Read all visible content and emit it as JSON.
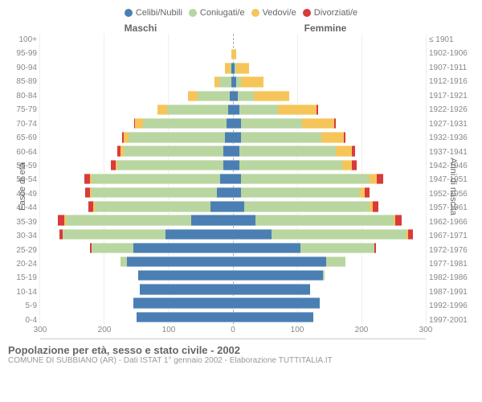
{
  "legend": [
    {
      "label": "Celibi/Nubili",
      "color": "#4b7fb3"
    },
    {
      "label": "Coniugati/e",
      "color": "#b9d6a0"
    },
    {
      "label": "Vedovi/e",
      "color": "#f6c55a"
    },
    {
      "label": "Divorziati/e",
      "color": "#d93a3a"
    }
  ],
  "headers": {
    "male": "Maschi",
    "female": "Femmine"
  },
  "ylabel_left": "Fasce di età",
  "ylabel_right": "Anni di nascita",
  "xmax": 300,
  "xticks": [
    0,
    100,
    200,
    300
  ],
  "title": "Popolazione per età, sesso e stato civile - 2002",
  "subtitle": "COMUNE DI SUBBIANO (AR) - Dati ISTAT 1° gennaio 2002 - Elaborazione TUTTITALIA.IT",
  "rows": [
    {
      "age": "100+",
      "birth": "≤ 1901",
      "m": {
        "cel": 0,
        "con": 0,
        "ved": 0,
        "div": 0
      },
      "f": {
        "cel": 0,
        "con": 0,
        "ved": 0,
        "div": 0
      }
    },
    {
      "age": "95-99",
      "birth": "1902-1906",
      "m": {
        "cel": 0,
        "con": 0,
        "ved": 2,
        "div": 0
      },
      "f": {
        "cel": 0,
        "con": 0,
        "ved": 5,
        "div": 0
      }
    },
    {
      "age": "90-94",
      "birth": "1907-1911",
      "m": {
        "cel": 2,
        "con": 2,
        "ved": 8,
        "div": 0
      },
      "f": {
        "cel": 3,
        "con": 2,
        "ved": 20,
        "div": 0
      }
    },
    {
      "age": "85-89",
      "birth": "1912-1916",
      "m": {
        "cel": 3,
        "con": 18,
        "ved": 8,
        "div": 0
      },
      "f": {
        "cel": 5,
        "con": 8,
        "ved": 35,
        "div": 0
      }
    },
    {
      "age": "80-84",
      "birth": "1917-1921",
      "m": {
        "cel": 5,
        "con": 50,
        "ved": 15,
        "div": 0
      },
      "f": {
        "cel": 8,
        "con": 25,
        "ved": 55,
        "div": 0
      }
    },
    {
      "age": "75-79",
      "birth": "1922-1926",
      "m": {
        "cel": 8,
        "con": 95,
        "ved": 15,
        "div": 0
      },
      "f": {
        "cel": 10,
        "con": 60,
        "ved": 60,
        "div": 2
      }
    },
    {
      "age": "70-74",
      "birth": "1927-1931",
      "m": {
        "cel": 10,
        "con": 130,
        "ved": 12,
        "div": 2
      },
      "f": {
        "cel": 12,
        "con": 95,
        "ved": 50,
        "div": 3
      }
    },
    {
      "age": "65-69",
      "birth": "1932-1936",
      "m": {
        "cel": 12,
        "con": 150,
        "ved": 8,
        "div": 3
      },
      "f": {
        "cel": 12,
        "con": 125,
        "ved": 35,
        "div": 3
      }
    },
    {
      "age": "60-64",
      "birth": "1937-1941",
      "m": {
        "cel": 15,
        "con": 155,
        "ved": 5,
        "div": 5
      },
      "f": {
        "cel": 10,
        "con": 150,
        "ved": 25,
        "div": 5
      }
    },
    {
      "age": "55-59",
      "birth": "1942-1946",
      "m": {
        "cel": 15,
        "con": 165,
        "ved": 3,
        "div": 7
      },
      "f": {
        "cel": 10,
        "con": 160,
        "ved": 15,
        "div": 8
      }
    },
    {
      "age": "50-54",
      "birth": "1947-1951",
      "m": {
        "cel": 20,
        "con": 200,
        "ved": 3,
        "div": 8
      },
      "f": {
        "cel": 12,
        "con": 200,
        "ved": 12,
        "div": 10
      }
    },
    {
      "age": "45-49",
      "birth": "1952-1956",
      "m": {
        "cel": 25,
        "con": 195,
        "ved": 2,
        "div": 8
      },
      "f": {
        "cel": 12,
        "con": 185,
        "ved": 8,
        "div": 8
      }
    },
    {
      "age": "40-44",
      "birth": "1957-1961",
      "m": {
        "cel": 35,
        "con": 180,
        "ved": 2,
        "div": 8
      },
      "f": {
        "cel": 18,
        "con": 195,
        "ved": 5,
        "div": 8
      }
    },
    {
      "age": "35-39",
      "birth": "1962-1966",
      "m": {
        "cel": 65,
        "con": 195,
        "ved": 2,
        "div": 10
      },
      "f": {
        "cel": 35,
        "con": 215,
        "ved": 3,
        "div": 10
      }
    },
    {
      "age": "30-34",
      "birth": "1967-1971",
      "m": {
        "cel": 105,
        "con": 160,
        "ved": 0,
        "div": 5
      },
      "f": {
        "cel": 60,
        "con": 210,
        "ved": 2,
        "div": 8
      }
    },
    {
      "age": "25-29",
      "birth": "1972-1976",
      "m": {
        "cel": 155,
        "con": 65,
        "ved": 0,
        "div": 2
      },
      "f": {
        "cel": 105,
        "con": 115,
        "ved": 0,
        "div": 3
      }
    },
    {
      "age": "20-24",
      "birth": "1977-1981",
      "m": {
        "cel": 165,
        "con": 10,
        "ved": 0,
        "div": 0
      },
      "f": {
        "cel": 145,
        "con": 30,
        "ved": 0,
        "div": 0
      }
    },
    {
      "age": "15-19",
      "birth": "1982-1986",
      "m": {
        "cel": 148,
        "con": 0,
        "ved": 0,
        "div": 0
      },
      "f": {
        "cel": 140,
        "con": 2,
        "ved": 0,
        "div": 0
      }
    },
    {
      "age": "10-14",
      "birth": "1987-1991",
      "m": {
        "cel": 145,
        "con": 0,
        "ved": 0,
        "div": 0
      },
      "f": {
        "cel": 120,
        "con": 0,
        "ved": 0,
        "div": 0
      }
    },
    {
      "age": "5-9",
      "birth": "1992-1996",
      "m": {
        "cel": 155,
        "con": 0,
        "ved": 0,
        "div": 0
      },
      "f": {
        "cel": 135,
        "con": 0,
        "ved": 0,
        "div": 0
      }
    },
    {
      "age": "0-4",
      "birth": "1997-2001",
      "m": {
        "cel": 150,
        "con": 0,
        "ved": 0,
        "div": 0
      },
      "f": {
        "cel": 125,
        "con": 0,
        "ved": 0,
        "div": 0
      }
    }
  ]
}
